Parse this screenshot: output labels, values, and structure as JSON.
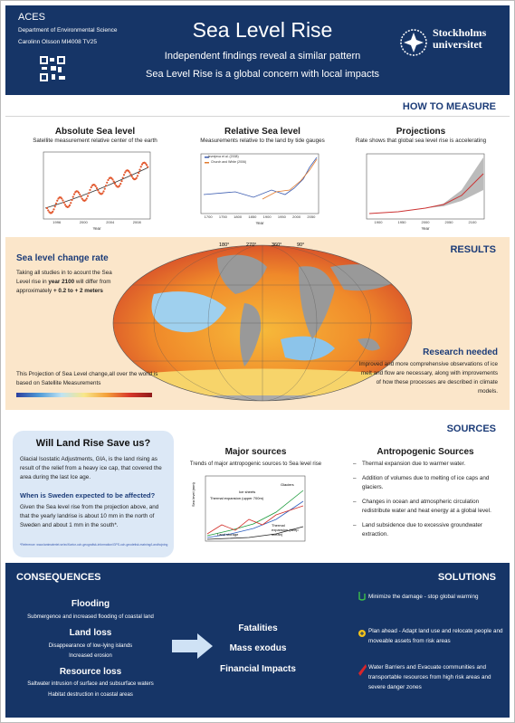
{
  "header": {
    "acronym": "ACES",
    "department": "Department of Environmental Science",
    "author": "Carolinn Olsson MI4008 TV25",
    "title": "Sea Level Rise",
    "subtitles": [
      "Independent findings reveal a similar pattern",
      "Sea Level Rise is a global concern with local impacts"
    ],
    "logo": [
      "Stockholms",
      "universitet"
    ]
  },
  "how_to_measure": {
    "heading": "HOW TO MEASURE",
    "panels": [
      {
        "title": "Absolute Sea level",
        "caption": "Satellite measurement relative center of the earth",
        "xlabel": "Year",
        "xticks": [
          "1996",
          "2000",
          "2004",
          "2008"
        ]
      },
      {
        "title": "Relative Sea level",
        "caption": "Measurements relative to the land by tide gauges",
        "xlabel": "Year",
        "xticks": [
          "1700",
          "1750",
          "1800",
          "1850",
          "1900",
          "1950",
          "2000",
          "2050"
        ],
        "legend": [
          "Jevrejeva et al. (2008)",
          "Church and White (2006)"
        ]
      },
      {
        "title": "Projections",
        "caption": "Rate shows that global sea level rise is accelerating",
        "xlabel": "Year",
        "xticks": [
          "1900",
          "1950",
          "2000",
          "2050",
          "2100"
        ]
      }
    ]
  },
  "results": {
    "heading": "RESULTS",
    "title": "Sea level change rate",
    "text": [
      "Taking all studies in to acount the Sea Level rise in ",
      "year 2100",
      " will differ from approximately ",
      "+ 0.2 to + 2 meters"
    ],
    "map_labels": [
      "180°",
      "270°",
      "360°",
      "90°"
    ],
    "caption": "This Projection of Sea Level change,all over the world is based on Satellite Measurements",
    "research_title": "Research needed",
    "research_text": "Improved and more comprehensive observations of ice melt and flow are necessary, along with improvements of how these processes are described in climate models."
  },
  "sources": {
    "heading": "SOURCES",
    "box": {
      "title": "Will Land Rise Save us?",
      "text": "Glacial Isostatic Adjustments, GIA, is the land rising as result of the relief from a heavy ice cap, that covered the area during the last Ice age.",
      "question": "When is Sweden expected to be affected?",
      "answer": "Given the Sea level rise from the projection above, and that the yearly landrise is about 10 mm in the north of Sweden and about 1 mm in the south*.",
      "reference": "*Reference: www.lantmateriet.se/sv/Kartor-och-geografisk-information/GPS-och-geodetisk-matning/Landhojning"
    },
    "major": {
      "title": "Major sources",
      "caption": "Trends of major antropogenic sources to Sea level rise",
      "ylabel": "Sea level (mm)",
      "labels": [
        "Glaciers",
        "Ice sheets",
        "Thermal expansion (upper 700m)",
        "Land storage",
        "Thermal expansion (deep ocean)"
      ]
    },
    "antropogenic": {
      "title": "Antropogenic Sources",
      "items": [
        "Thermal expansion due to warmer water.",
        "Addition of volumes due to melting of ice caps and glaciers.",
        "Changes in ocean and atmospheric circulation redistribute water and heat energy at a global level.",
        "Land subsidence due to excessive groundwater extraction."
      ]
    }
  },
  "consequences": {
    "heading": "CONSEQUENCES",
    "items": [
      {
        "title": "Flooding",
        "lines": [
          "Submergence and increased flooding of coastal land"
        ]
      },
      {
        "title": "Land loss",
        "lines": [
          "Disappearance of low-lying islands",
          "Increased erosion"
        ]
      },
      {
        "title": "Resource loss",
        "lines": [
          "Saltwater intrusion of surface and subsurface waters",
          "Habitat destruction in coastal areas"
        ]
      }
    ],
    "outcomes": [
      "Fatalities",
      "Mass exodus",
      "Financial Impacts"
    ]
  },
  "solutions": {
    "heading": "SOLUTIONS",
    "items": [
      "Minimize the damage - stop global warming",
      "Plan ahead - Adapt land use and relocate people and moveable assets from risk areas",
      "Water Barriers and Evacuate communities and transportable resources from high risk areas and severe danger zones"
    ]
  }
}
